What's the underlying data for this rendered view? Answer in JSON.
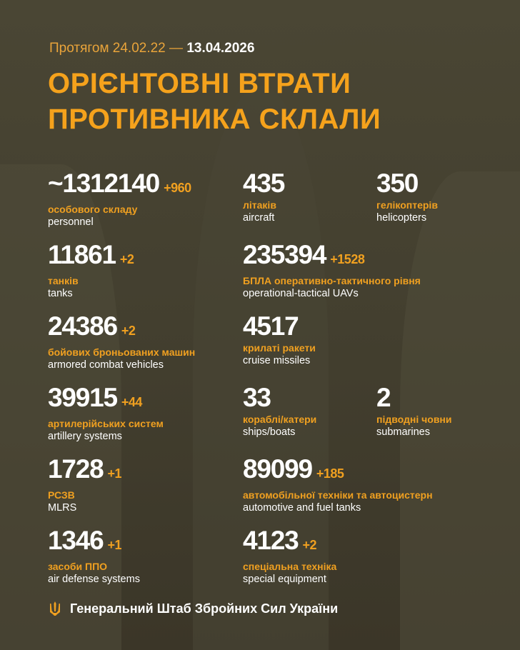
{
  "header": {
    "period_prefix": "Протягом 24.02.22 —",
    "period_end": "13.04.2026",
    "title_line1": "ОРІЄНТОВНІ ВТРАТИ",
    "title_line2": "ПРОТИВНИКА СКЛАЛИ"
  },
  "colors": {
    "accent": "#f0a020",
    "background": "#433f2f",
    "text": "#ffffff"
  },
  "stats": [
    {
      "value": "~1312140",
      "delta": "+960",
      "ua": "особового складу",
      "en": "personnel"
    },
    {
      "value": "435",
      "delta": "",
      "ua": "літаків",
      "en": "aircraft"
    },
    {
      "value": "350",
      "delta": "",
      "ua": "гелікоптерів",
      "en": "helicopters"
    },
    {
      "value": "11861",
      "delta": "+2",
      "ua": "танків",
      "en": "tanks"
    },
    {
      "value": "235394",
      "delta": "+1528",
      "ua": "БПЛА оперативно-тактичного рівня",
      "en": "operational-tactical UAVs"
    },
    {
      "value": "24386",
      "delta": "+2",
      "ua": "бойових броньованих машин",
      "en": "armored combat vehicles"
    },
    {
      "value": "4517",
      "delta": "",
      "ua": "крилаті ракети",
      "en": "cruise missiles"
    },
    {
      "value": "39915",
      "delta": "+44",
      "ua": "артилерійських систем",
      "en": "artillery systems"
    },
    {
      "value": "33",
      "delta": "",
      "ua": "кораблі/катери",
      "en": "ships/boats"
    },
    {
      "value": "2",
      "delta": "",
      "ua": "підводні човни",
      "en": "submarines"
    },
    {
      "value": "1728",
      "delta": "+1",
      "ua": "РСЗВ",
      "en": "MLRS"
    },
    {
      "value": "89099",
      "delta": "+185",
      "ua": "автомобільної техніки та автоцистерн",
      "en": "automotive and fuel tanks"
    },
    {
      "value": "1346",
      "delta": "+1",
      "ua": "засоби ППО",
      "en": "air defense systems"
    },
    {
      "value": "4123",
      "delta": "+2",
      "ua": "спеціальна техніка",
      "en": "special equipment"
    }
  ],
  "footer": {
    "icon": "trident-icon",
    "text": "Генеральний Штаб Збройних Сил України"
  }
}
